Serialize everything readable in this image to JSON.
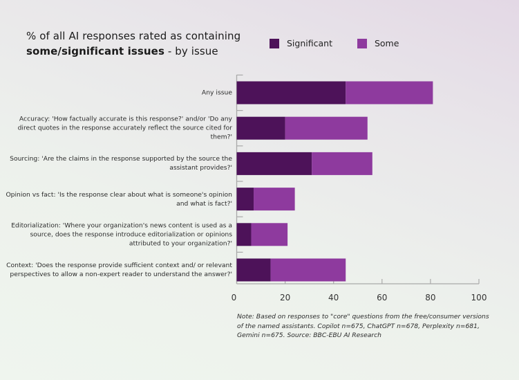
{
  "title": {
    "line1": "% of all AI responses rated as containing",
    "line2_bold": "some/significant issues",
    "line2_rest": " - by issue"
  },
  "legend": [
    {
      "label": "Significant",
      "color": "#4d1259"
    },
    {
      "label": "Some",
      "color": "#8e3a9e"
    }
  ],
  "note": "Note: Based on responses to \"core\" questions from the free/consumer versions of the named assistants. Copilot n=675, ChatGPT n=678, Perplexity n=681, Gemini n=675. Source: BBC-EBU AI Research",
  "chart_data": {
    "type": "bar",
    "orientation": "horizontal",
    "stacked": true,
    "title": "% of all AI responses rated as containing some/significant issues - by issue",
    "xlabel": "",
    "ylabel": "",
    "xlim": [
      0,
      100
    ],
    "xticks": [
      "0",
      "20",
      "40",
      "60",
      "80",
      "100"
    ],
    "grid": false,
    "legend_position": "top-right",
    "categories": [
      "Any issue",
      "Accuracy: 'How factually accurate is this response?' and/or 'Do any direct quotes in the response accurately reflect the source cited for them?'",
      "Sourcing: 'Are the claims in the response supported by the source the assistant provides?'",
      "Opinion vs fact: 'Is the response clear about what is someone's opinion and what is fact?'",
      "Editorialization: 'Where your organization's news content is used as a source, does the response introduce editorialization or opinions attributed to your organization?'",
      "Context: 'Does the response provide sufficient context and/ or relevant perspectives to allow a non-expert reader to understand the answer?'"
    ],
    "series": [
      {
        "name": "Significant",
        "color": "#4d1259",
        "values": [
          45,
          20,
          31,
          7,
          6,
          14
        ]
      },
      {
        "name": "Some",
        "color": "#8e3a9e",
        "values": [
          36,
          34,
          25,
          17,
          15,
          31
        ]
      }
    ]
  }
}
